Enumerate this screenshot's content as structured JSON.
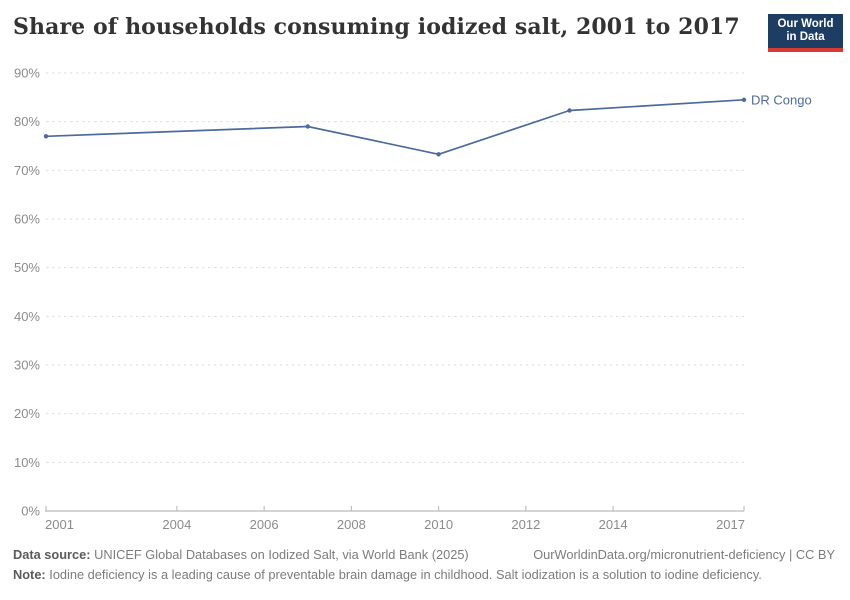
{
  "header": {
    "title": "Share of households consuming iodized salt, 2001 to 2017",
    "logo": {
      "line1": "Our World",
      "line2": "in Data",
      "bg_color": "#1d3d63",
      "bar_color": "#d93a34"
    }
  },
  "chart_data": {
    "type": "line",
    "title": "Share of households consuming iodized salt, 2001 to 2017",
    "x": [
      2001,
      2007,
      2010,
      2013,
      2017
    ],
    "values": [
      77,
      79,
      73.3,
      82.3,
      84.5
    ],
    "series": [
      {
        "name": "DR Congo",
        "values": [
          77,
          79,
          73.3,
          82.3,
          84.5
        ]
      }
    ],
    "series_name": "DR Congo",
    "series_color": "#4c6a9c",
    "xlim": [
      2001,
      2017
    ],
    "ylim": [
      0,
      90
    ],
    "yticks": [
      0,
      10,
      20,
      30,
      40,
      50,
      60,
      70,
      80,
      90
    ],
    "ytick_suffix": "%",
    "xticks": [
      2001,
      2004,
      2006,
      2008,
      2010,
      2012,
      2014,
      2017
    ],
    "grid": "horizontal-dashed",
    "legend_position": "right-of-line"
  },
  "footer": {
    "data_source_label": "Data source:",
    "data_source_text": " UNICEF Global Databases on Iodized Salt, via World Bank (2025)",
    "rights_text": "OurWorldinData.org/micronutrient-deficiency | CC BY",
    "note_label": "Note:",
    "note_text": " Iodine deficiency is a leading cause of preventable brain damage in childhood. Salt iodization is a solution to iodine deficiency."
  }
}
